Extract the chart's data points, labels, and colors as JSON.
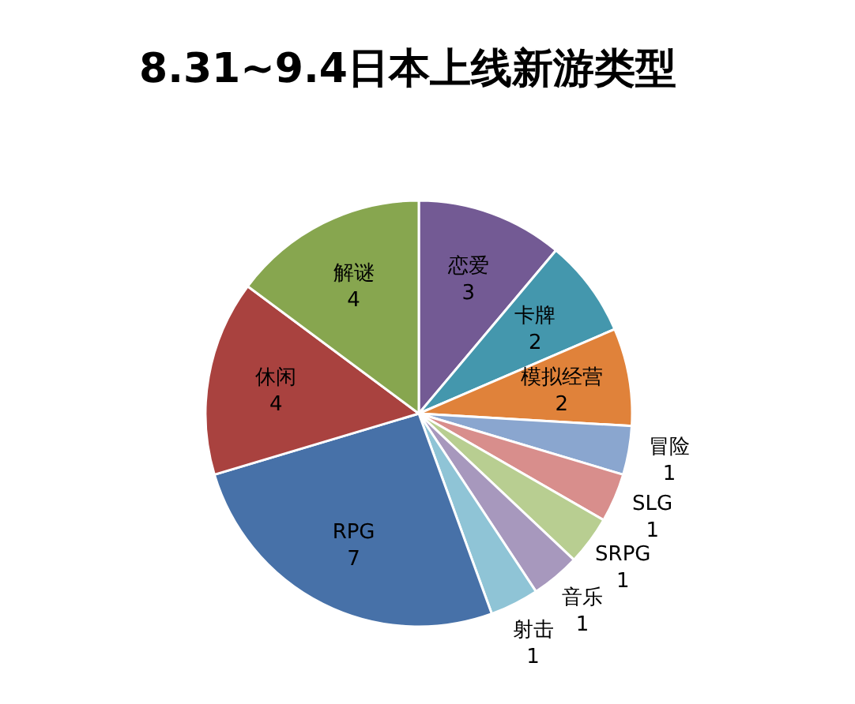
{
  "chart_data": {
    "type": "pie",
    "title": "8.31~9.4日本上线新游类型",
    "categories": [
      "恋爱",
      "卡牌",
      "模拟经营",
      "冒险",
      "SLG",
      "SRPG",
      "音乐",
      "射击",
      "RPG",
      "休闲",
      "解谜"
    ],
    "values": [
      3,
      2,
      2,
      1,
      1,
      1,
      1,
      1,
      7,
      4,
      4
    ],
    "colors": [
      "#735a94",
      "#4497ad",
      "#e0823a",
      "#8aa6cf",
      "#d88e8c",
      "#b8ce91",
      "#a798bd",
      "#8fc4d6",
      "#4771a8",
      "#a9423f",
      "#87a64f"
    ],
    "data_labels": true,
    "legend": false
  }
}
